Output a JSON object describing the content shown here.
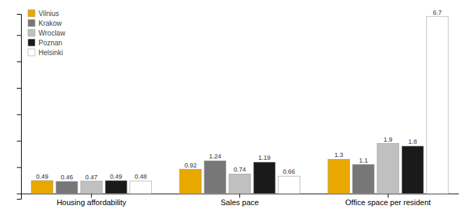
{
  "chart_data": {
    "type": "bar",
    "categories": [
      "Housing affordability",
      "Sales pace",
      "Office space per resident"
    ],
    "series": [
      {
        "name": "Vilnius",
        "color": "#E8A800",
        "values": [
          0.49,
          0.92,
          1.3
        ]
      },
      {
        "name": "Krakow",
        "color": "#777777",
        "values": [
          0.46,
          1.24,
          1.1
        ]
      },
      {
        "name": "Wroclaw",
        "color": "#c0c0c0",
        "values": [
          0.47,
          0.74,
          1.9
        ]
      },
      {
        "name": "Poznan",
        "color": "#1a1a1a",
        "values": [
          0.49,
          1.19,
          1.8
        ]
      },
      {
        "name": "Helsinki",
        "color": "#ffffff",
        "values": [
          0.48,
          0.66,
          6.7
        ]
      }
    ],
    "ylim": [
      -0.2,
      6.8
    ],
    "yticks": [
      0,
      1,
      2,
      3,
      4,
      5,
      6
    ],
    "grid": false,
    "legend": "upper left",
    "data_labels": true,
    "tick_labels": "x"
  }
}
